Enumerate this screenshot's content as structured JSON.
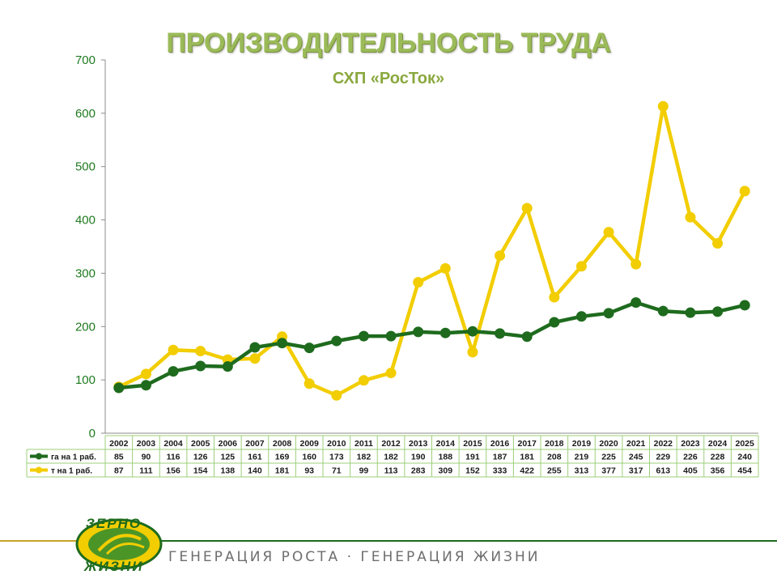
{
  "title": "ПРОИЗВОДИТЕЛЬНОСТЬ ТРУДА",
  "subtitle": "СХП «РосТок»",
  "footer": {
    "tagline": "ГЕНЕРАЦИЯ РОСТА · ГЕНЕРАЦИЯ ЖИЗНИ",
    "logo_top": "ЗЕРНО",
    "logo_bottom": "ЖИЗНИ"
  },
  "colors": {
    "series1": "#1e6b1e",
    "series2": "#f2cd00",
    "title": "#9bbb59",
    "axis_text": "#1f7a1f"
  },
  "chart_data": {
    "type": "line",
    "title": "ПРОИЗВОДИТЕЛЬНОСТЬ ТРУДА",
    "subtitle": "СХП «РосТок»",
    "xlabel": "",
    "ylabel": "",
    "ylim": [
      0,
      700
    ],
    "yticks": [
      0,
      100,
      200,
      300,
      400,
      500,
      600,
      700
    ],
    "grid": false,
    "legend": "data-table",
    "categories": [
      "2002",
      "2003",
      "2004",
      "2005",
      "2006",
      "2007",
      "2008",
      "2009",
      "2010",
      "2011",
      "2012",
      "2013",
      "2014",
      "2015",
      "2016",
      "2017",
      "2018",
      "2019",
      "2020",
      "2021",
      "2022",
      "2023",
      "2024",
      "2025"
    ],
    "series": [
      {
        "name": "га на 1 раб.",
        "color": "#1e6b1e",
        "values": [
          85,
          90,
          116,
          126,
          125,
          161,
          169,
          160,
          173,
          182,
          182,
          190,
          188,
          191,
          187,
          181,
          208,
          219,
          225,
          245,
          229,
          226,
          228,
          240
        ]
      },
      {
        "name": "т на 1 раб.",
        "color": "#f2cd00",
        "values": [
          87,
          111,
          156,
          154,
          138,
          140,
          181,
          93,
          71,
          99,
          113,
          283,
          309,
          152,
          333,
          422,
          255,
          313,
          377,
          317,
          613,
          405,
          356,
          454
        ]
      }
    ]
  }
}
